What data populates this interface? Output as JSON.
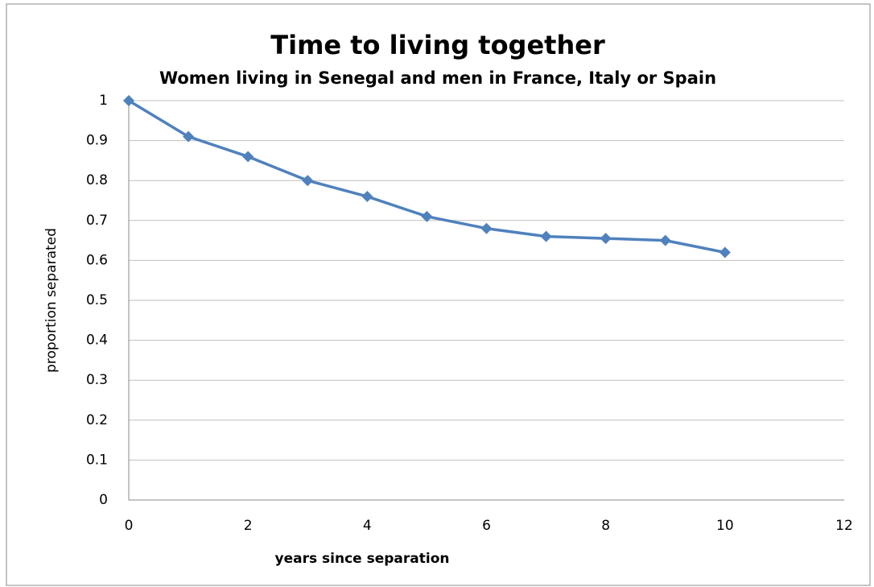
{
  "chart_data": {
    "type": "line",
    "title": "Time to living together",
    "subtitle": "Women living in Senegal and men in France, Italy or Spain",
    "x_label": "years since separation",
    "y_label": "proportion separated",
    "x": [
      0,
      1,
      2,
      3,
      4,
      5,
      6,
      7,
      8,
      9,
      10
    ],
    "series": [
      {
        "name": "proportion separated",
        "color": "#4f81bd",
        "values": [
          1.0,
          0.91,
          0.86,
          0.8,
          0.76,
          0.71,
          0.68,
          0.66,
          0.655,
          0.65,
          0.62
        ]
      }
    ],
    "xlim": [
      0,
      12
    ],
    "xticks": [
      0,
      2,
      4,
      6,
      8,
      10,
      12
    ],
    "ylim": [
      0,
      1
    ],
    "yticks": [
      0,
      0.1,
      0.2,
      0.3,
      0.4,
      0.5,
      0.6,
      0.7,
      0.8,
      0.9,
      1
    ],
    "grid": true
  }
}
